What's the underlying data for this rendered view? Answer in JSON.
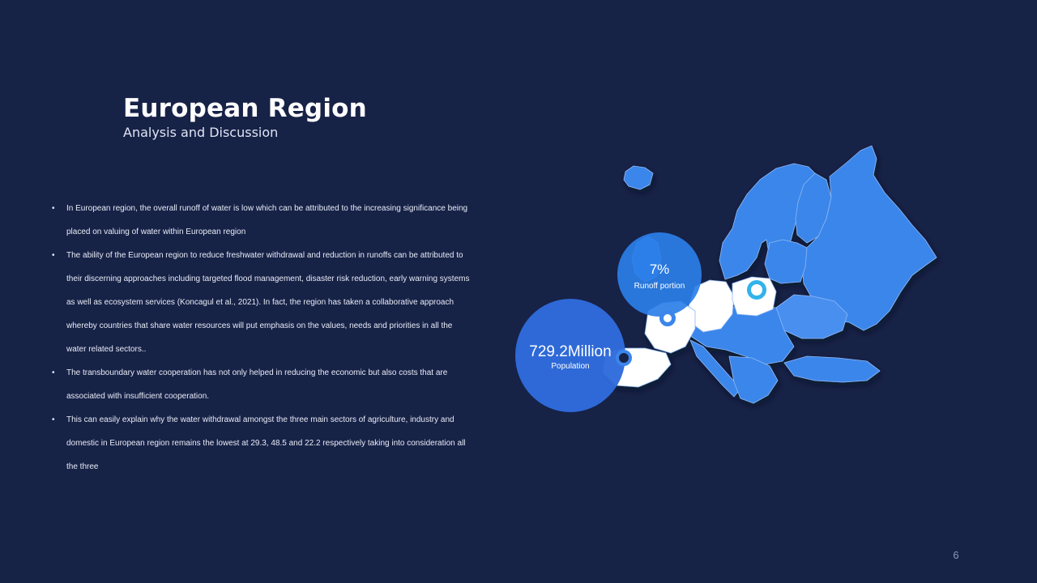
{
  "slide": {
    "title": "European Region",
    "subtitle": "Analysis and Discussion",
    "page_number": "6"
  },
  "bullets": [
    "In European region, the overall runoff of water is low which can be attributed to the increasing significance being placed on valuing of water within European region",
    "The ability of the European region to reduce freshwater withdrawal and reduction in runoffs can be attributed to their discerning approaches including targeted flood management, disaster risk reduction, early warning systems as well as ecosystem services (Koncagul et al., 2021). In fact, the region has taken a collaborative approach whereby countries that share water resources will put emphasis on the values, needs and priorities in all the water related sectors..",
    "The transboundary water cooperation has not only helped in reducing the economic but also costs that are associated with insufficient cooperation.",
    "This can easily explain why the water withdrawal amongst the three main sectors of agriculture, industry and domestic in European region remains the lowest at 29.3, 48.5 and 22.2 respectively taking into consideration all the three"
  ],
  "stats": {
    "population": {
      "value": "729.2Million",
      "label": "Population"
    },
    "runoff": {
      "value": "7%",
      "label": "Runoff portion"
    }
  },
  "colors": {
    "background": "#172247",
    "map_land": "#3b86ea",
    "map_highlight": "#ffffff",
    "circle_large": "#2f6bdc",
    "circle_small": "#2b7fe8",
    "marker_ring": "#32b3ea"
  },
  "icons": {
    "map": "europe-map",
    "marker": "location-marker-icon"
  }
}
